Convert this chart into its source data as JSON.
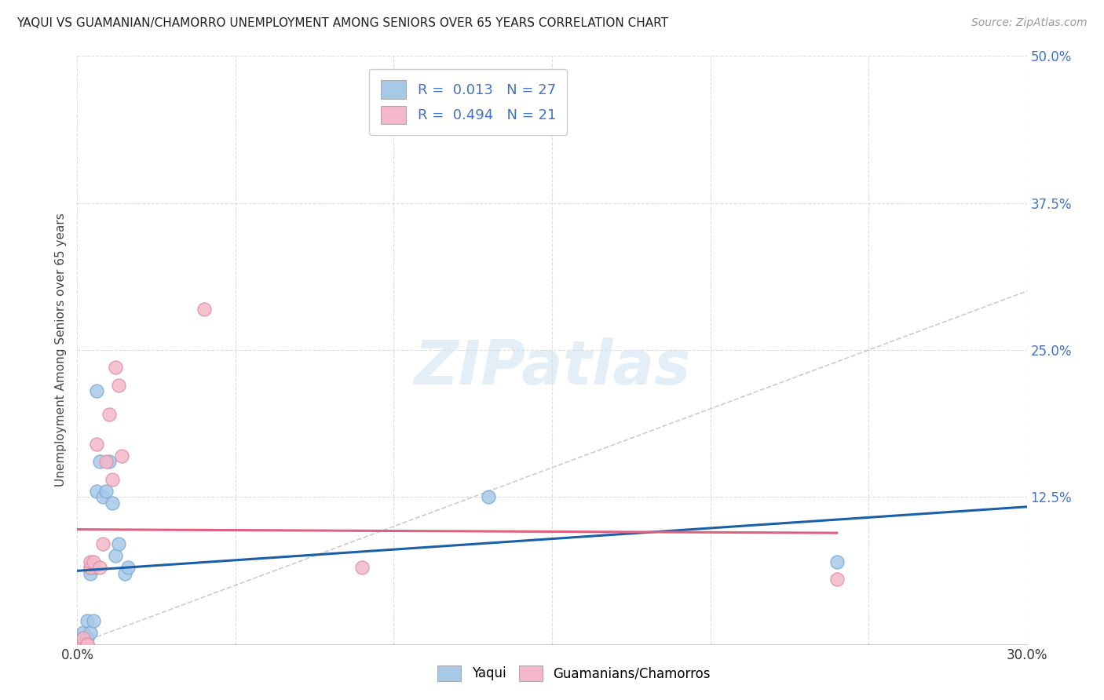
{
  "title": "YAQUI VS GUAMANIAN/CHAMORRO UNEMPLOYMENT AMONG SENIORS OVER 65 YEARS CORRELATION CHART",
  "source": "Source: ZipAtlas.com",
  "ylabel_label": "Unemployment Among Seniors over 65 years",
  "xlim": [
    0.0,
    0.3
  ],
  "ylim": [
    -0.02,
    0.5
  ],
  "plot_ylim": [
    0.0,
    0.5
  ],
  "xticks": [
    0.0,
    0.05,
    0.1,
    0.15,
    0.2,
    0.25,
    0.3
  ],
  "xticklabels": [
    "0.0%",
    "",
    "",
    "",
    "",
    "",
    "30.0%"
  ],
  "yticks_right": [
    0.0,
    0.125,
    0.25,
    0.375,
    0.5
  ],
  "yticklabels_right": [
    "",
    "12.5%",
    "25.0%",
    "37.5%",
    "50.0%"
  ],
  "yaqui_color": "#a8c8e8",
  "yaqui_edge": "#7bafd4",
  "guam_color": "#f4b8c8",
  "guam_edge": "#e090a8",
  "reg_yaqui_color": "#1a5fa8",
  "reg_guam_color": "#e06080",
  "yaqui_R": 0.013,
  "yaqui_N": 27,
  "guam_R": 0.494,
  "guam_N": 21,
  "yaqui_points": [
    [
      0.0,
      0.0
    ],
    [
      0.001,
      0.0
    ],
    [
      0.001,
      0.005
    ],
    [
      0.002,
      0.0
    ],
    [
      0.002,
      0.005
    ],
    [
      0.002,
      0.01
    ],
    [
      0.003,
      0.0
    ],
    [
      0.003,
      0.005
    ],
    [
      0.003,
      0.02
    ],
    [
      0.004,
      0.01
    ],
    [
      0.004,
      0.06
    ],
    [
      0.004,
      0.065
    ],
    [
      0.005,
      0.02
    ],
    [
      0.005,
      0.065
    ],
    [
      0.006,
      0.13
    ],
    [
      0.006,
      0.215
    ],
    [
      0.007,
      0.155
    ],
    [
      0.008,
      0.125
    ],
    [
      0.009,
      0.13
    ],
    [
      0.01,
      0.155
    ],
    [
      0.011,
      0.12
    ],
    [
      0.012,
      0.075
    ],
    [
      0.013,
      0.085
    ],
    [
      0.015,
      0.06
    ],
    [
      0.016,
      0.065
    ],
    [
      0.13,
      0.125
    ],
    [
      0.24,
      0.07
    ]
  ],
  "guam_points": [
    [
      0.0,
      0.0
    ],
    [
      0.001,
      0.0
    ],
    [
      0.002,
      0.0
    ],
    [
      0.002,
      0.005
    ],
    [
      0.003,
      0.0
    ],
    [
      0.003,
      0.0
    ],
    [
      0.004,
      0.065
    ],
    [
      0.004,
      0.07
    ],
    [
      0.005,
      0.07
    ],
    [
      0.006,
      0.17
    ],
    [
      0.007,
      0.065
    ],
    [
      0.008,
      0.085
    ],
    [
      0.009,
      0.155
    ],
    [
      0.01,
      0.195
    ],
    [
      0.011,
      0.14
    ],
    [
      0.012,
      0.235
    ],
    [
      0.013,
      0.22
    ],
    [
      0.014,
      0.16
    ],
    [
      0.04,
      0.285
    ],
    [
      0.09,
      0.065
    ],
    [
      0.24,
      0.055
    ]
  ],
  "watermark_text": "ZIPatlas",
  "diagonal_color": "#cccccc",
  "grid_color": "#dddddd",
  "background_color": "#ffffff"
}
